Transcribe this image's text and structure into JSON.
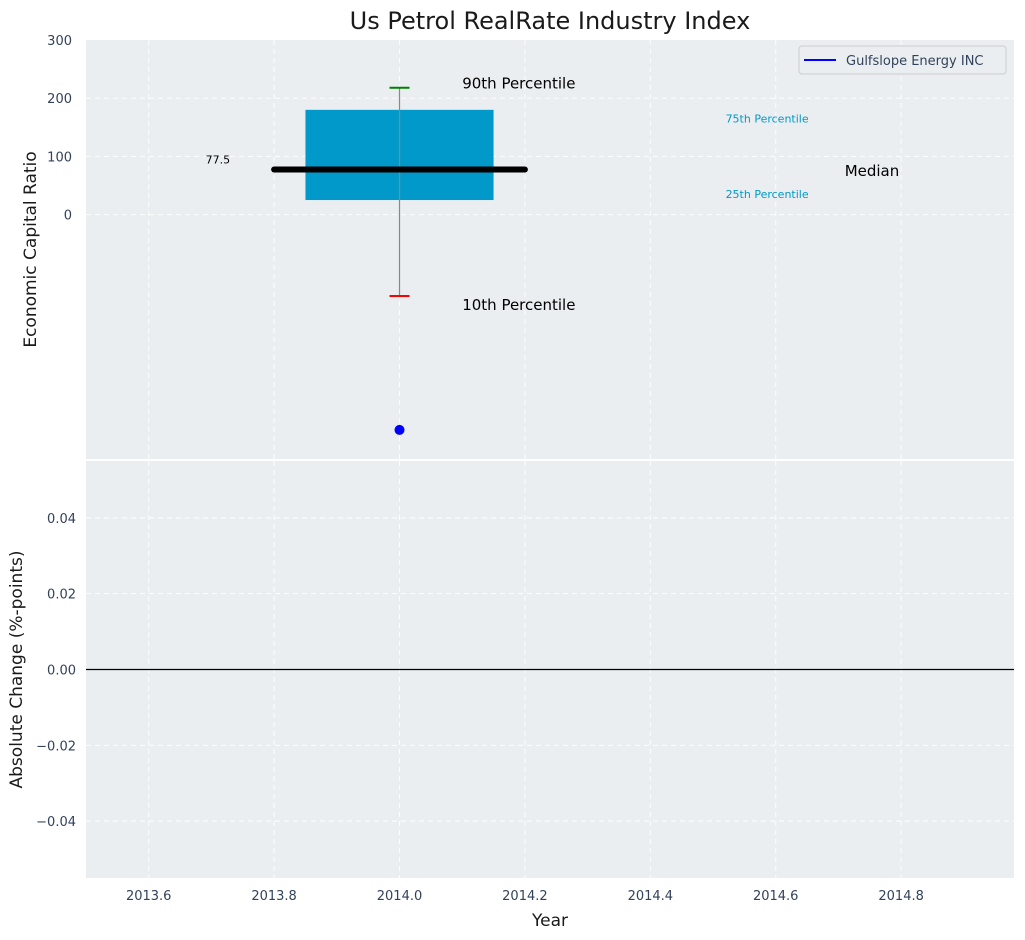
{
  "chart_data": [
    {
      "type": "box",
      "title": "Us Petrol RealRate Industry Index",
      "xlabel": "",
      "ylabel": "Economic Capital Ratio",
      "xlim": [
        2013.5,
        2014.98
      ],
      "ylim": [
        -420,
        300
      ],
      "yticks": [
        0,
        100,
        200,
        300
      ],
      "grid": true,
      "legend": {
        "position": "top-right",
        "entries": [
          {
            "name": "Gulfslope Energy INC",
            "color": "#0000ff"
          }
        ]
      },
      "box": {
        "x": 2014.0,
        "left": 2013.85,
        "right": 2014.15,
        "q1": 25,
        "q3": 180,
        "median": 77.5,
        "median_left": 2013.8,
        "median_right": 2014.2,
        "p10": -140,
        "p90": 218,
        "fill": "#0099c9"
      },
      "median_label": "77.5",
      "company_point": {
        "name": "Gulfslope Energy INC",
        "x": 2014.0,
        "y": -370,
        "color": "#0000ff"
      },
      "annotations": {
        "p90": {
          "text": "90th Percentile",
          "x": 2014.1,
          "y": 225
        },
        "p10": {
          "text": "10th Percentile",
          "x": 2014.1,
          "y": -155
        },
        "p75": {
          "text": "75th Percentile",
          "x": 2014.52,
          "y": 165
        },
        "p25": {
          "text": "25th Percentile",
          "x": 2014.52,
          "y": 35
        },
        "median": {
          "text": "Median",
          "x": 2014.71,
          "y": 75
        }
      }
    },
    {
      "type": "line",
      "title": "",
      "xlabel": "Year",
      "ylabel": "Absolute Change (%-points)",
      "xlim": [
        2013.5,
        2014.98
      ],
      "ylim": [
        -0.055,
        0.055
      ],
      "xticks": [
        2013.6,
        2013.8,
        2014.0,
        2014.2,
        2014.4,
        2014.6,
        2014.8
      ],
      "xtick_labels": [
        "2013.6",
        "2013.8",
        "2014.0",
        "2014.2",
        "2014.4",
        "2014.6",
        "2014.8"
      ],
      "yticks": [
        0.04,
        0.02,
        0.0,
        -0.02,
        -0.04
      ],
      "ytick_labels": [
        "0.04",
        "0.02",
        "0.00",
        "−0.02",
        "−0.04"
      ],
      "grid": true,
      "reference_line": 0,
      "series": []
    }
  ],
  "colors": {
    "plot_bg": "#eaeef0",
    "p90_cap": "#008000",
    "p10_cap": "#ff0000",
    "percentile_label": "#0099c9",
    "median_line": "#000000"
  }
}
